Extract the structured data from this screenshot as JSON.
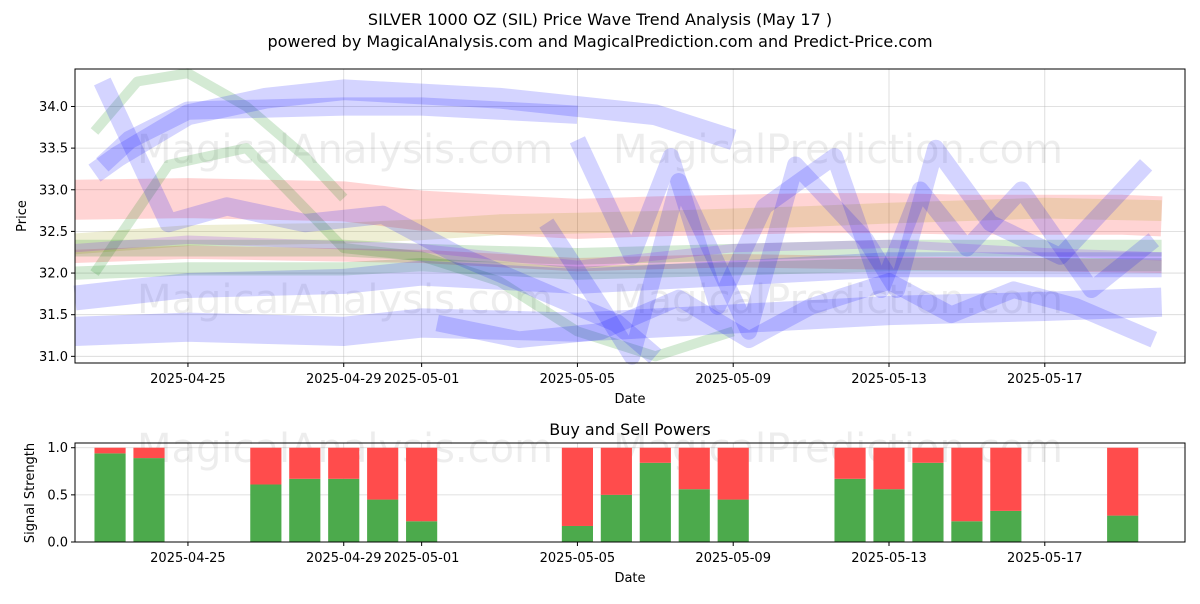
{
  "chart_data": [
    {
      "type": "line",
      "title": "SILVER 1000 OZ (SIL) Price Wave Trend Analysis (May 17 )",
      "subtitle": "powered by MagicalAnalysis.com and MagicalPrediction.com and Predict-Price.com",
      "xlabel": "Date",
      "ylabel": "Price",
      "x_range": [
        -2.9,
        25.6
      ],
      "ylim": [
        30.92,
        34.45
      ],
      "x_ticks": [
        {
          "pos": 0,
          "label": "2025-04-25"
        },
        {
          "pos": 4,
          "label": "2025-04-29"
        },
        {
          "pos": 6,
          "label": "2025-05-01"
        },
        {
          "pos": 10,
          "label": "2025-05-05"
        },
        {
          "pos": 14,
          "label": "2025-05-09"
        },
        {
          "pos": 18,
          "label": "2025-05-13"
        },
        {
          "pos": 22,
          "label": "2025-05-17"
        }
      ],
      "y_ticks": [
        31.0,
        31.5,
        32.0,
        32.5,
        33.0,
        33.5,
        34.0
      ],
      "grid": true,
      "watermarks": [
        "MagicalAnalysis.com",
        "MagicalPrediction.com"
      ],
      "bands": [
        {
          "name": "red band upper",
          "color": "#ff0000",
          "width": 0.48,
          "x": [
            -2.9,
            0,
            4,
            6,
            8,
            10,
            12,
            14,
            16,
            18,
            20,
            22,
            24,
            25.0
          ],
          "y": [
            32.88,
            32.9,
            32.86,
            32.75,
            32.7,
            32.65,
            32.68,
            32.7,
            32.72,
            32.72,
            32.7,
            32.7,
            32.7,
            32.68
          ]
        },
        {
          "name": "red band lower",
          "color": "#ff0000",
          "width": 0.16,
          "x": [
            -2.9,
            0,
            6,
            10,
            14,
            18,
            22,
            25.0
          ],
          "y": [
            32.2,
            32.25,
            32.2,
            32.1,
            32.15,
            32.12,
            32.1,
            32.08
          ]
        },
        {
          "name": "olive band",
          "color": "#999900",
          "width": 0.25,
          "x": [
            -2.9,
            0,
            4,
            6,
            8,
            10,
            12,
            14,
            16,
            18,
            20,
            22,
            25.0
          ],
          "y": [
            32.35,
            32.45,
            32.48,
            32.52,
            32.58,
            32.6,
            32.62,
            32.65,
            32.68,
            32.72,
            32.75,
            32.78,
            32.75
          ]
        },
        {
          "name": "green band upper",
          "color": "#008000",
          "width": 0.2,
          "x": [
            -2.9,
            0,
            4,
            6,
            10,
            14,
            18,
            22,
            25.0
          ],
          "y": [
            32.3,
            32.3,
            32.3,
            32.25,
            32.2,
            32.25,
            32.3,
            32.3,
            32.3
          ]
        },
        {
          "name": "green band lower",
          "color": "#008000",
          "width": 0.16,
          "x": [
            -2.9,
            0,
            4,
            6,
            10,
            14,
            18,
            22,
            25.0
          ],
          "y": [
            32.0,
            32.05,
            32.05,
            32.1,
            32.0,
            32.05,
            32.1,
            32.1,
            32.1
          ]
        },
        {
          "name": "green early wave",
          "color": "#008000",
          "width": 0.12,
          "x": [
            -2.4,
            -1.3,
            0,
            1.5,
            3,
            4
          ],
          "y": [
            33.7,
            34.3,
            34.4,
            34.0,
            33.4,
            32.9
          ]
        },
        {
          "name": "green diagonal",
          "color": "#008000",
          "width": 0.12,
          "x": [
            -2.4,
            -0.5,
            1.5,
            4,
            6,
            8,
            10,
            12,
            14
          ],
          "y": [
            32.0,
            33.3,
            33.5,
            32.3,
            32.2,
            31.9,
            31.3,
            31.0,
            31.3
          ]
        },
        {
          "name": "blue high band",
          "color": "#0000ff",
          "width": 0.25,
          "x": [
            -2.4,
            -1.8,
            0,
            2,
            4,
            6,
            8,
            10,
            12,
            14
          ],
          "y": [
            33.2,
            33.4,
            33.9,
            34.1,
            34.2,
            34.15,
            34.1,
            34.0,
            33.9,
            33.6
          ]
        },
        {
          "name": "blue top wave",
          "color": "#0000ff",
          "width": 0.22,
          "x": [
            -2.2,
            -1.5,
            0,
            4,
            6,
            8,
            10
          ],
          "y": [
            33.3,
            33.6,
            33.95,
            34.0,
            34.0,
            33.95,
            33.9
          ]
        },
        {
          "name": "blue steep down",
          "color": "#0000ff",
          "width": 0.22,
          "x": [
            -2.2,
            -1.4,
            -0.5,
            1,
            3,
            5,
            7,
            9,
            11,
            12
          ],
          "y": [
            34.3,
            33.5,
            32.6,
            32.8,
            32.6,
            32.7,
            32.2,
            31.8,
            31.4,
            31.0
          ]
        },
        {
          "name": "blue lower band",
          "color": "#0000ff",
          "width": 0.35,
          "x": [
            -2.9,
            0,
            4,
            6,
            10,
            14,
            18,
            22,
            25.0
          ],
          "y": [
            31.3,
            31.35,
            31.3,
            31.4,
            31.35,
            31.45,
            31.55,
            31.6,
            31.65
          ]
        },
        {
          "name": "blue mid band",
          "color": "#0000ff",
          "width": 0.3,
          "x": [
            -2.9,
            0,
            4,
            6,
            10,
            14,
            18,
            22,
            25.0
          ],
          "y": [
            31.7,
            31.85,
            31.9,
            32.0,
            31.9,
            32.0,
            32.1,
            32.1,
            32.1
          ]
        },
        {
          "name": "blue zigzag A",
          "color": "#0000ff",
          "width": 0.2,
          "x": [
            9.2,
            10.6,
            11.4,
            12.6,
            14.4,
            15.6,
            17.4,
            18.2,
            19.2,
            20.6,
            22.4,
            24.6
          ],
          "y": [
            32.6,
            31.6,
            31.0,
            33.1,
            31.3,
            33.3,
            32.4,
            31.8,
            33.5,
            32.6,
            32.2,
            33.3
          ]
        },
        {
          "name": "blue zigzag B",
          "color": "#0000ff",
          "width": 0.2,
          "x": [
            10.0,
            11.4,
            12.4,
            13.6,
            14.8,
            16.6,
            17.8,
            18.8,
            20.0,
            21.4,
            23.2,
            24.8
          ],
          "y": [
            33.6,
            32.2,
            33.4,
            31.6,
            32.8,
            33.4,
            31.8,
            33.0,
            32.3,
            33.0,
            31.8,
            32.4
          ]
        },
        {
          "name": "blue lower right",
          "color": "#0000ff",
          "width": 0.2,
          "x": [
            6.4,
            8.5,
            10.6,
            12.6,
            14.4,
            16,
            18,
            19.6,
            21.2,
            22.8,
            24.8
          ],
          "y": [
            31.4,
            31.2,
            31.3,
            31.7,
            31.2,
            31.6,
            31.9,
            31.5,
            31.8,
            31.6,
            31.2
          ]
        },
        {
          "name": "purple mid line",
          "color": "#8000ff",
          "width": 0.1,
          "x": [
            -2.9,
            0,
            6,
            10,
            14,
            18,
            22,
            25.0
          ],
          "y": [
            32.3,
            32.4,
            32.3,
            32.1,
            32.3,
            32.35,
            32.25,
            32.2
          ]
        }
      ]
    },
    {
      "type": "bar",
      "title": "Buy and Sell Powers",
      "xlabel": "Date",
      "ylabel": "Signal Strength",
      "ylim": [
        0,
        1.05
      ],
      "x_range": [
        -2.9,
        25.6
      ],
      "y_ticks": [
        0.0,
        0.5,
        1.0
      ],
      "x_ticks": [
        {
          "pos": 0,
          "label": "2025-04-25"
        },
        {
          "pos": 4,
          "label": "2025-04-29"
        },
        {
          "pos": 6,
          "label": "2025-05-01"
        },
        {
          "pos": 10,
          "label": "2025-05-05"
        },
        {
          "pos": 14,
          "label": "2025-05-09"
        },
        {
          "pos": 18,
          "label": "2025-05-13"
        },
        {
          "pos": 22,
          "label": "2025-05-17"
        }
      ],
      "colors": {
        "buy": "#4caa4c",
        "sell": "#ff4c4c"
      },
      "series": [
        {
          "name": "Buy",
          "values": [
            0.94,
            0.89,
            0.61,
            0.67,
            0.67,
            0.45,
            0.22,
            0.17,
            0.5,
            0.84,
            0.56,
            0.45,
            0.67,
            0.56,
            0.84,
            0.22,
            0.33,
            0.28
          ]
        },
        {
          "name": "Sell",
          "values": [
            0.06,
            0.11,
            0.39,
            0.33,
            0.33,
            0.55,
            0.78,
            0.83,
            0.5,
            0.16,
            0.44,
            0.55,
            0.33,
            0.44,
            0.16,
            0.78,
            0.67,
            0.72
          ]
        }
      ],
      "x": [
        -2,
        -1,
        2,
        3,
        4,
        5,
        6,
        10,
        11,
        12,
        13,
        14,
        17,
        18,
        19,
        20,
        21,
        24
      ]
    }
  ]
}
